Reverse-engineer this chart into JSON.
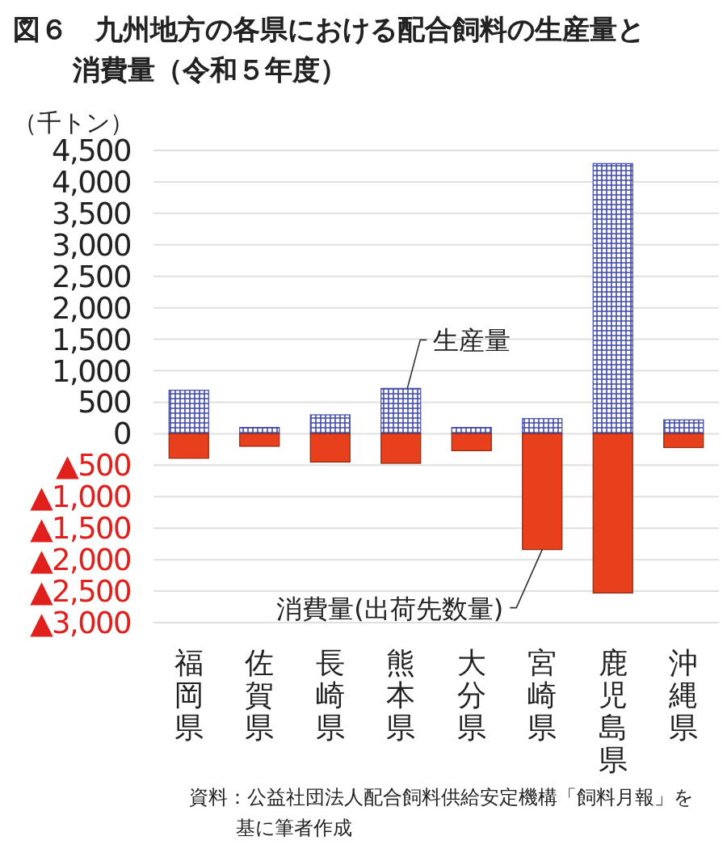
{
  "chart_data": {
    "type": "bar",
    "stacked": true,
    "title": "図６　九州地方の各県における配合飼料の生産量と消費量（令和５年度）",
    "ylabel": "（千トン）",
    "categories": [
      "福岡県",
      "佐賀県",
      "長崎県",
      "熊本県",
      "大分県",
      "宮崎県",
      "鹿児島県",
      "沖縄県"
    ],
    "series": [
      {
        "color": "#3f48a8",
        "values": [
          690,
          100,
          300,
          720,
          100,
          240,
          4290,
          220
        ]
      },
      {
        "color": "#e8401c",
        "values": [
          -390,
          -200,
          -450,
          -470,
          -270,
          -1840,
          -2530,
          -220
        ]
      }
    ],
    "ylim": [
      -3000,
      4500
    ],
    "yticks": [
      {
        "value": -3000,
        "label": "▲3,000"
      },
      {
        "value": -2500,
        "label": "▲2,500"
      },
      {
        "value": -2000,
        "label": "▲2,000"
      },
      {
        "value": -1500,
        "label": "▲1,500"
      },
      {
        "value": -1000,
        "label": "▲1,000"
      },
      {
        "value": -500,
        "label": "▲500"
      },
      {
        "value": 0,
        "label": "0"
      },
      {
        "value": 500,
        "label": "500"
      },
      {
        "value": 1000,
        "label": "1,000"
      },
      {
        "value": 1500,
        "label": "1,500"
      },
      {
        "value": 2000,
        "label": "2,000"
      },
      {
        "value": 2500,
        "label": "2,500"
      },
      {
        "value": 3000,
        "label": "3,000"
      },
      {
        "value": 3500,
        "label": "3,500"
      },
      {
        "value": 4000,
        "label": "4,000"
      },
      {
        "value": 4500,
        "label": "4,500"
      }
    ],
    "grid": "y",
    "annotations": [
      {
        "text": "生産量",
        "x": "熊本県",
        "y": 720
      },
      {
        "text": "消費量(出荷先数量)",
        "x": "宮崎県",
        "y": -1840
      },
      "資料：公益社団法人配合飼料供給安定機構「飼料月報」を基に筆者作成"
    ]
  }
}
